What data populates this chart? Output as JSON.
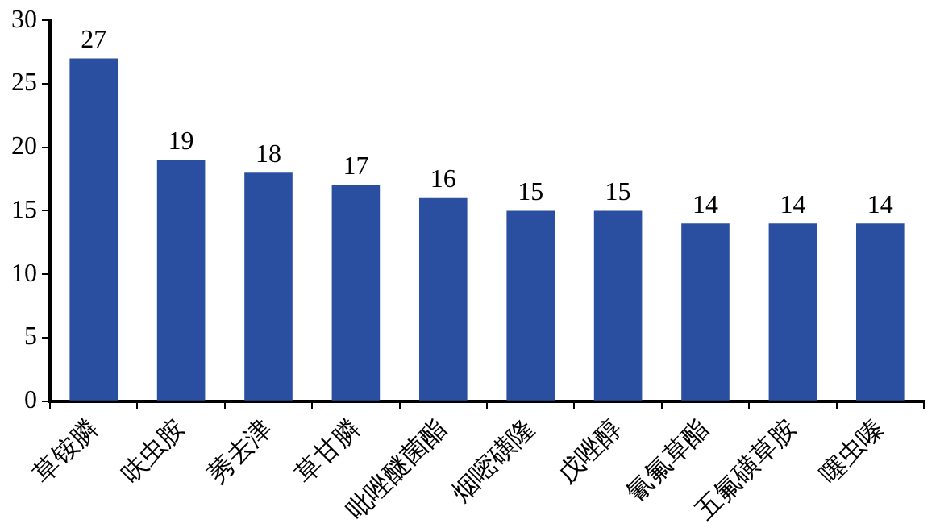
{
  "chart_data": {
    "type": "bar",
    "categories": [
      "草铵膦",
      "呋虫胺",
      "莠去津",
      "草甘膦",
      "吡唑醚菌酯",
      "烟嘧磺隆",
      "戊唑醇",
      "氰氟草酯",
      "五氟磺草胺",
      "噻虫嗪"
    ],
    "values": [
      27,
      19,
      18,
      17,
      16,
      15,
      15,
      14,
      14,
      14
    ],
    "color": "#2a4fa0",
    "ylim": [
      0,
      30
    ],
    "yticks": [
      0,
      5,
      10,
      15,
      20,
      25,
      30
    ],
    "grid": false,
    "legend": false,
    "data_labels": true
  }
}
